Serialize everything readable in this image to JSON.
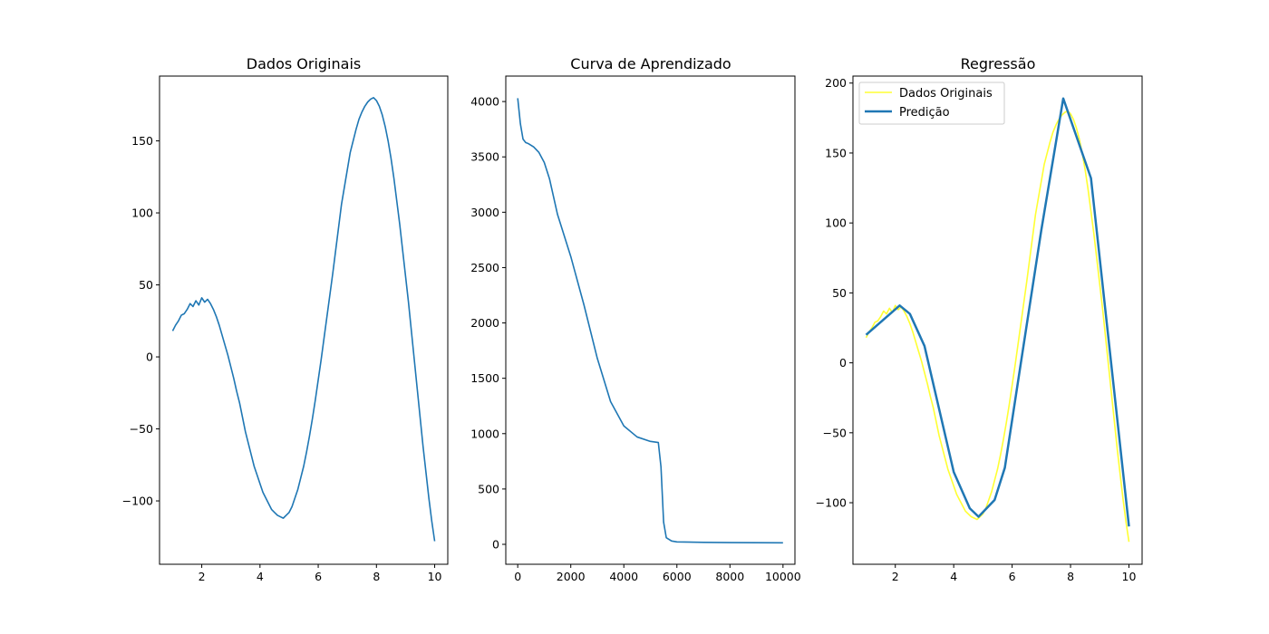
{
  "chart_data": [
    {
      "type": "line",
      "title": "Dados Originais",
      "xlim": [
        0.55,
        10.45
      ],
      "ylim": [
        -144,
        195
      ],
      "xticks": [
        2,
        4,
        6,
        8,
        10
      ],
      "yticks": [
        -100,
        -50,
        0,
        50,
        100,
        150
      ],
      "series": [
        {
          "color": "#1f77b4",
          "x": [
            1.0,
            1.1,
            1.2,
            1.3,
            1.4,
            1.5,
            1.6,
            1.7,
            1.8,
            1.9,
            2.0,
            2.1,
            2.2,
            2.3,
            2.4,
            2.5,
            2.6,
            2.7,
            2.8,
            2.9,
            3.0,
            3.1,
            3.2,
            3.3,
            3.4,
            3.5,
            3.6,
            3.7,
            3.8,
            3.9,
            4.0,
            4.1,
            4.2,
            4.3,
            4.4,
            4.5,
            4.6,
            4.7,
            4.8,
            4.9,
            5.0,
            5.1,
            5.2,
            5.3,
            5.4,
            5.5,
            5.6,
            5.7,
            5.8,
            5.9,
            6.0,
            6.1,
            6.2,
            6.3,
            6.4,
            6.5,
            6.6,
            6.7,
            6.8,
            6.9,
            7.0,
            7.1,
            7.2,
            7.3,
            7.4,
            7.5,
            7.6,
            7.7,
            7.8,
            7.9,
            8.0,
            8.1,
            8.2,
            8.3,
            8.4,
            8.5,
            8.6,
            8.7,
            8.8,
            8.9,
            9.0,
            9.1,
            9.2,
            9.3,
            9.4,
            9.5,
            9.6,
            9.7,
            9.8,
            9.9,
            10.0
          ],
          "y": [
            18,
            22,
            25,
            29,
            30,
            33,
            37,
            35,
            39,
            36,
            41,
            38,
            40,
            37,
            33,
            28,
            22,
            15,
            8,
            1,
            -7,
            -15,
            -24,
            -32,
            -42,
            -52,
            -60,
            -68,
            -76,
            -82,
            -88,
            -94,
            -98,
            -102,
            -106,
            -108,
            -110,
            -111,
            -112,
            -110,
            -108,
            -104,
            -98,
            -92,
            -84,
            -76,
            -66,
            -55,
            -43,
            -30,
            -16,
            -2,
            13,
            28,
            43,
            58,
            74,
            90,
            106,
            118,
            130,
            142,
            150,
            158,
            165,
            170,
            174,
            177,
            179,
            180,
            178,
            174,
            168,
            160,
            150,
            138,
            124,
            108,
            92,
            74,
            56,
            38,
            18,
            -2,
            -22,
            -42,
            -62,
            -80,
            -98,
            -114,
            -128
          ]
        }
      ]
    },
    {
      "type": "line",
      "title": "Curva de Aprendizado",
      "xlim": [
        -450,
        10450
      ],
      "ylim": [
        -180,
        4230
      ],
      "xticks": [
        0,
        2000,
        4000,
        6000,
        8000,
        10000
      ],
      "yticks": [
        0,
        500,
        1000,
        1500,
        2000,
        2500,
        3000,
        3500,
        4000
      ],
      "series": [
        {
          "color": "#1f77b4",
          "x": [
            0,
            100,
            200,
            300,
            400,
            600,
            800,
            1000,
            1200,
            1500,
            2000,
            2500,
            3000,
            3500,
            4000,
            4500,
            5000,
            5300,
            5400,
            5500,
            5600,
            5800,
            6000,
            7000,
            8000,
            9000,
            10000
          ],
          "y": [
            4030,
            3800,
            3660,
            3630,
            3620,
            3590,
            3540,
            3450,
            3300,
            2980,
            2600,
            2160,
            1680,
            1290,
            1070,
            970,
            930,
            920,
            700,
            200,
            60,
            30,
            22,
            18,
            16,
            15,
            14
          ]
        }
      ]
    },
    {
      "type": "line",
      "title": "Regressão",
      "xlim": [
        0.55,
        10.45
      ],
      "ylim": [
        -144,
        205
      ],
      "xticks": [
        2,
        4,
        6,
        8,
        10
      ],
      "yticks": [
        -100,
        -50,
        0,
        50,
        100,
        150,
        200
      ],
      "legend": {
        "position": "upper-left",
        "entries": [
          "Dados Originais",
          "Predição"
        ]
      },
      "series": [
        {
          "name": "Dados Originais",
          "color": "#ffff33",
          "x": [
            1.0,
            1.1,
            1.2,
            1.3,
            1.4,
            1.5,
            1.6,
            1.7,
            1.8,
            1.9,
            2.0,
            2.1,
            2.2,
            2.3,
            2.4,
            2.5,
            2.6,
            2.7,
            2.8,
            2.9,
            3.0,
            3.1,
            3.2,
            3.3,
            3.4,
            3.5,
            3.6,
            3.7,
            3.8,
            3.9,
            4.0,
            4.1,
            4.2,
            4.3,
            4.4,
            4.5,
            4.6,
            4.7,
            4.8,
            4.9,
            5.0,
            5.1,
            5.2,
            5.3,
            5.4,
            5.5,
            5.6,
            5.7,
            5.8,
            5.9,
            6.0,
            6.1,
            6.2,
            6.3,
            6.4,
            6.5,
            6.6,
            6.7,
            6.8,
            6.9,
            7.0,
            7.1,
            7.2,
            7.3,
            7.4,
            7.5,
            7.6,
            7.7,
            7.8,
            7.9,
            8.0,
            8.1,
            8.2,
            8.3,
            8.4,
            8.5,
            8.6,
            8.7,
            8.8,
            8.9,
            9.0,
            9.1,
            9.2,
            9.3,
            9.4,
            9.5,
            9.6,
            9.7,
            9.8,
            9.9,
            10.0
          ],
          "y": [
            18,
            22,
            25,
            29,
            30,
            33,
            37,
            35,
            39,
            36,
            41,
            38,
            40,
            37,
            33,
            28,
            22,
            15,
            8,
            1,
            -7,
            -15,
            -24,
            -32,
            -42,
            -52,
            -60,
            -68,
            -76,
            -82,
            -88,
            -94,
            -98,
            -102,
            -106,
            -108,
            -110,
            -111,
            -112,
            -110,
            -108,
            -104,
            -98,
            -92,
            -84,
            -76,
            -66,
            -55,
            -43,
            -30,
            -16,
            -2,
            13,
            28,
            43,
            58,
            74,
            90,
            106,
            118,
            130,
            142,
            150,
            158,
            165,
            170,
            174,
            177,
            179,
            180,
            178,
            174,
            168,
            160,
            150,
            138,
            124,
            108,
            92,
            74,
            56,
            38,
            18,
            -2,
            -22,
            -42,
            -62,
            -80,
            -98,
            -114,
            -128
          ]
        },
        {
          "name": "Predição",
          "color": "#1f77b4",
          "x": [
            1.0,
            2.15,
            2.5,
            3.0,
            4.0,
            4.55,
            4.85,
            5.4,
            5.75,
            6.3,
            7.0,
            7.75,
            8.7,
            10.0
          ],
          "y": [
            20,
            41,
            35,
            12,
            -78,
            -104,
            -110,
            -98,
            -75,
            0,
            95,
            189,
            132,
            -117
          ]
        }
      ]
    }
  ]
}
